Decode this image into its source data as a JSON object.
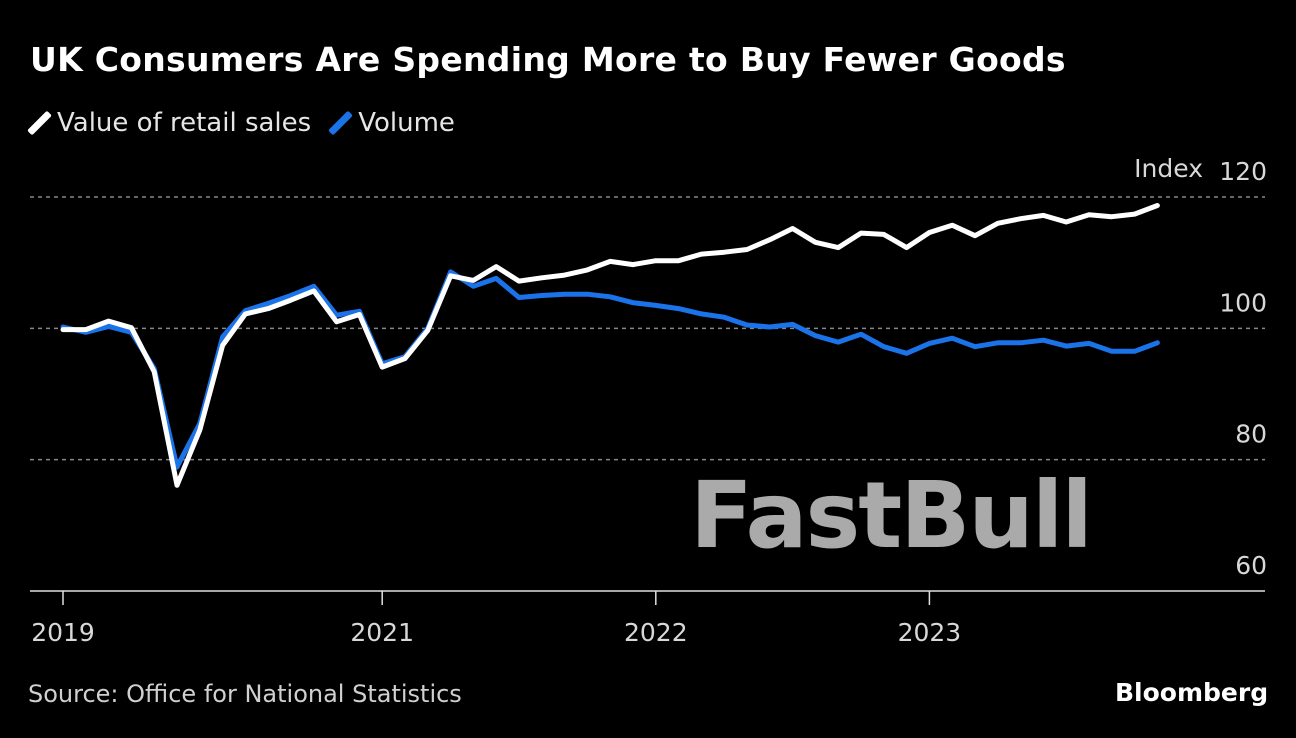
{
  "chart_data": {
    "type": "line",
    "title": "UK Consumers Are Spending More to Buy Fewer Goods",
    "ylabel": "Index",
    "ylim": [
      60,
      120
    ],
    "yticks": [
      60,
      80,
      100,
      120
    ],
    "grid": true,
    "legend_placement": "top-left",
    "x_start": "2019-11",
    "x_tick_labels": [
      {
        "label": "2019",
        "month_index": 0
      },
      {
        "label": "2021",
        "month_index": 14
      },
      {
        "label": "2022",
        "month_index": 26
      },
      {
        "label": "2023",
        "month_index": 38
      }
    ],
    "series": [
      {
        "name": "Value of retail sales",
        "color": "#ffffff",
        "values": [
          99.8,
          99.8,
          101.1,
          100.1,
          93.4,
          76.1,
          84.5,
          97.4,
          102.2,
          103.0,
          104.3,
          105.7,
          101.0,
          102.1,
          94.1,
          95.4,
          99.7,
          108.0,
          107.3,
          109.4,
          107.2,
          107.7,
          108.1,
          108.9,
          110.2,
          109.7,
          110.3,
          110.3,
          111.3,
          111.6,
          112.0,
          113.5,
          115.2,
          113.1,
          112.3,
          114.5,
          114.3,
          112.3,
          114.6,
          115.7,
          114.1,
          116.0,
          116.7,
          117.2,
          116.2,
          117.3,
          117.0,
          117.4,
          118.7
        ]
      },
      {
        "name": "Volume",
        "color": "#1a73e8",
        "values": [
          100.2,
          99.4,
          100.3,
          99.4,
          93.9,
          78.9,
          85.5,
          98.7,
          102.7,
          103.8,
          105.0,
          106.4,
          102.0,
          102.6,
          94.6,
          95.7,
          100.0,
          108.6,
          106.4,
          107.6,
          104.7,
          105.0,
          105.2,
          105.2,
          104.8,
          103.9,
          103.5,
          103.0,
          102.2,
          101.7,
          100.5,
          100.2,
          100.6,
          98.9,
          97.9,
          99.1,
          97.2,
          96.2,
          97.7,
          98.5,
          97.2,
          97.8,
          97.8,
          98.2,
          97.3,
          97.7,
          96.5,
          96.5,
          97.8
        ]
      }
    ]
  },
  "source": "Source: Office for National Statistics",
  "watermark": "FastBull",
  "brand": "Bloomberg"
}
